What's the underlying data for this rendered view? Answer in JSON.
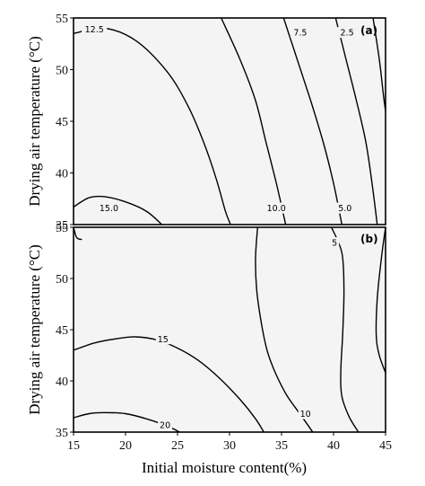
{
  "chart_data": [
    {
      "type": "contour",
      "panel_label": "(a)",
      "xlim": [
        15,
        45
      ],
      "ylim": [
        35,
        55
      ],
      "ylabel": "Drying air temperature (°C)",
      "y_ticks": [
        "35",
        "40",
        "45",
        "50",
        "55"
      ],
      "contours": [
        {
          "level": "12.5",
          "points": [
            [
              15,
              53.5
            ],
            [
              18,
              54
            ],
            [
              21,
              52.8
            ],
            [
              24,
              49.8
            ],
            [
              26,
              46.5
            ],
            [
              27.5,
              43
            ],
            [
              28.7,
              39.5
            ],
            [
              29.6,
              36.3
            ],
            [
              30.1,
              35
            ]
          ]
        },
        {
          "level": "15.0",
          "points": [
            [
              15,
              36.7
            ],
            [
              16.5,
              37.6
            ],
            [
              18,
              37.7
            ],
            [
              20,
              37.2
            ],
            [
              22,
              36.3
            ],
            [
              23.5,
              35
            ]
          ]
        },
        {
          "level": "10.0",
          "points": [
            [
              29.2,
              55
            ],
            [
              31,
              51
            ],
            [
              32.5,
              47
            ],
            [
              33.5,
              43
            ],
            [
              34.5,
              39
            ],
            [
              35.4,
              35
            ]
          ]
        },
        {
          "level": "7.5",
          "points": [
            [
              35.2,
              55
            ],
            [
              36.5,
              51
            ],
            [
              37.8,
              47
            ],
            [
              39,
              43
            ],
            [
              40,
              39
            ],
            [
              40.8,
              35
            ]
          ]
        },
        {
          "level": "5.0",
          "points": [
            [
              40.2,
              55
            ],
            [
              41.2,
              51
            ],
            [
              42.2,
              47
            ],
            [
              43.1,
              43
            ],
            [
              43.7,
              39
            ],
            [
              44.2,
              35
            ]
          ]
        },
        {
          "level": "2.5",
          "points": [
            [
              43.8,
              55
            ],
            [
              44.4,
              51
            ],
            [
              44.8,
              47.5
            ],
            [
              45,
              46
            ]
          ]
        }
      ],
      "labels": [
        {
          "text": "12.5",
          "x": 17,
          "y": 53.9
        },
        {
          "text": "15.0",
          "x": 18.4,
          "y": 36.6
        },
        {
          "text": "10.0",
          "x": 34.5,
          "y": 36.6
        },
        {
          "text": "7.5",
          "x": 36.8,
          "y": 53.6
        },
        {
          "text": "5.0",
          "x": 41.1,
          "y": 36.6
        },
        {
          "text": "2.5",
          "x": 41.3,
          "y": 53.6
        }
      ]
    },
    {
      "type": "contour",
      "panel_label": "(b)",
      "xlim": [
        15,
        45
      ],
      "ylim": [
        35,
        55
      ],
      "xlabel": "Initial moisture content(%)",
      "ylabel": "Drying air temperature (°C)",
      "x_ticks": [
        "15",
        "20",
        "25",
        "30",
        "35",
        "40",
        "45"
      ],
      "y_ticks": [
        "35",
        "40",
        "45",
        "50",
        "55"
      ],
      "contours": [
        {
          "level": "15",
          "points": [
            [
              15,
              43
            ],
            [
              17,
              43.7
            ],
            [
              19,
              44.1
            ],
            [
              21,
              44.3
            ],
            [
              23,
              44
            ],
            [
              25,
              43.2
            ],
            [
              27,
              42
            ],
            [
              29,
              40.3
            ],
            [
              31,
              38.2
            ],
            [
              32.5,
              36.3
            ],
            [
              33.3,
              35
            ]
          ]
        },
        {
          "level": "20",
          "points": [
            [
              15,
              36.4
            ],
            [
              16.5,
              36.8
            ],
            [
              18,
              36.9
            ],
            [
              20,
              36.8
            ],
            [
              22,
              36.3
            ],
            [
              24,
              35.6
            ],
            [
              25.2,
              35
            ]
          ]
        },
        {
          "level": "10",
          "points": [
            [
              32.7,
              55
            ],
            [
              32.5,
              52
            ],
            [
              32.6,
              49
            ],
            [
              33,
              46
            ],
            [
              33.6,
              43
            ],
            [
              34.4,
              40.8
            ],
            [
              35.5,
              38.6
            ],
            [
              36.9,
              36.6
            ],
            [
              38,
              35
            ]
          ]
        },
        {
          "level": "5",
          "points": [
            [
              39.8,
              55
            ],
            [
              40.8,
              52.5
            ],
            [
              41,
              49
            ],
            [
              40.9,
              45
            ],
            [
              40.7,
              41
            ],
            [
              40.8,
              38.5
            ],
            [
              41.5,
              36.5
            ],
            [
              42.4,
              35
            ]
          ]
        },
        {
          "level": "",
          "points": [
            [
              45,
              55
            ],
            [
              44.6,
              52
            ],
            [
              44.2,
              48
            ],
            [
              44.1,
              44.5
            ],
            [
              44.4,
              42.5
            ],
            [
              45,
              40.8
            ]
          ]
        },
        {
          "level": "",
          "points": [
            [
              15,
              55
            ],
            [
              15.3,
              54
            ],
            [
              15.8,
              53.8
            ]
          ]
        }
      ],
      "labels": [
        {
          "text": "15",
          "x": 23.6,
          "y": 44.1
        },
        {
          "text": "20",
          "x": 23.8,
          "y": 35.7
        },
        {
          "text": "10",
          "x": 37.3,
          "y": 36.8
        },
        {
          "text": "5",
          "x": 40.1,
          "y": 53.5
        }
      ]
    }
  ]
}
